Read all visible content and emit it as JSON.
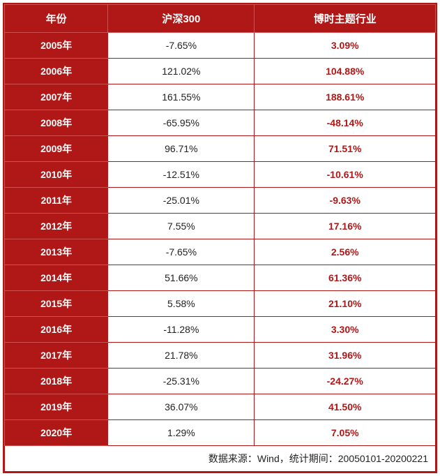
{
  "type": "table",
  "colors": {
    "header_bg": "#b01818",
    "header_text": "#ffffff",
    "border": "#b01818",
    "inner_red_border": "#d05050",
    "body_bg": "#ffffff",
    "csi_text": "#222222",
    "theme_text": "#b01818"
  },
  "fonts": {
    "header_size": 15,
    "body_size": 14,
    "family": "Microsoft YaHei"
  },
  "columns": [
    {
      "key": "year",
      "label": "年份",
      "width_pct": 24
    },
    {
      "key": "csi300",
      "label": "沪深300",
      "width_pct": 34
    },
    {
      "key": "theme",
      "label": "博时主题行业",
      "width_pct": 42
    }
  ],
  "rows": [
    {
      "year": "2005年",
      "csi300": "-7.65%",
      "theme": "3.09%"
    },
    {
      "year": "2006年",
      "csi300": "121.02%",
      "theme": "104.88%"
    },
    {
      "year": "2007年",
      "csi300": "161.55%",
      "theme": "188.61%"
    },
    {
      "year": "2008年",
      "csi300": "-65.95%",
      "theme": "-48.14%"
    },
    {
      "year": "2009年",
      "csi300": "96.71%",
      "theme": "71.51%"
    },
    {
      "year": "2010年",
      "csi300": "-12.51%",
      "theme": "-10.61%"
    },
    {
      "year": "2011年",
      "csi300": "-25.01%",
      "theme": "-9.63%"
    },
    {
      "year": "2012年",
      "csi300": "7.55%",
      "theme": "17.16%"
    },
    {
      "year": "2013年",
      "csi300": "-7.65%",
      "theme": "2.56%"
    },
    {
      "year": "2014年",
      "csi300": "51.66%",
      "theme": "61.36%"
    },
    {
      "year": "2015年",
      "csi300": "5.58%",
      "theme": "21.10%"
    },
    {
      "year": "2016年",
      "csi300": "-11.28%",
      "theme": "3.30%"
    },
    {
      "year": "2017年",
      "csi300": "21.78%",
      "theme": "31.96%"
    },
    {
      "year": "2018年",
      "csi300": "-25.31%",
      "theme": "-24.27%"
    },
    {
      "year": "2019年",
      "csi300": "36.07%",
      "theme": "41.50%"
    },
    {
      "year": "2020年",
      "csi300": "1.29%",
      "theme": "7.05%"
    }
  ],
  "source_note": "数据来源：Wind，统计期间：20050101-20200221"
}
